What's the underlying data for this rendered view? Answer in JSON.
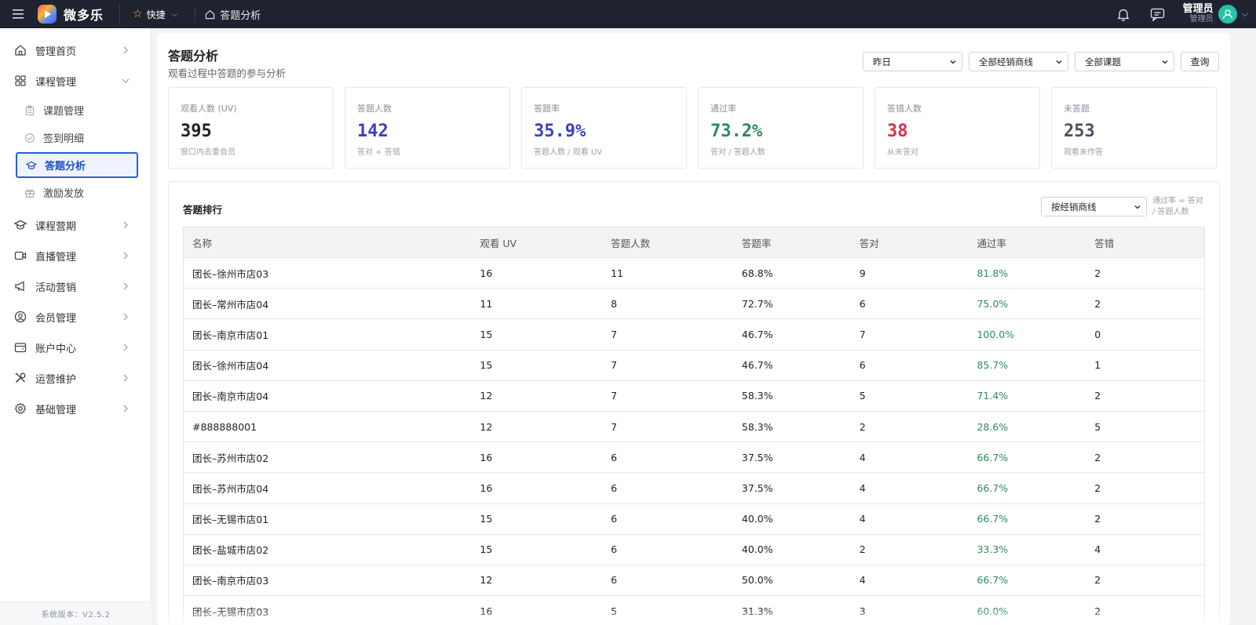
{
  "topbar": {
    "brand": "微多乐",
    "quick_label": "快捷",
    "breadcrumb": "答题分析"
  },
  "user": {
    "name": "管理员",
    "role": "管理员"
  },
  "sidebar": {
    "items": [
      {
        "label": "管理首页",
        "icon": "home-icon"
      },
      {
        "label": "课程管理",
        "icon": "grid-icon",
        "expanded": true
      },
      {
        "label": "课程营期",
        "icon": "graduation-icon"
      },
      {
        "label": "直播管理",
        "icon": "video-icon"
      },
      {
        "label": "活动营销",
        "icon": "megaphone-icon"
      },
      {
        "label": "会员管理",
        "icon": "user-circle-icon"
      },
      {
        "label": "账户中心",
        "icon": "wallet-icon"
      },
      {
        "label": "运营维护",
        "icon": "tools-icon"
      },
      {
        "label": "基础管理",
        "icon": "gear-icon"
      }
    ],
    "sub_items": [
      {
        "label": "课题管理",
        "icon": "clipboard-icon"
      },
      {
        "label": "签到明细",
        "icon": "check-circle-icon"
      },
      {
        "label": "答题分析",
        "icon": "graduation-icon",
        "active": true
      },
      {
        "label": "激励发放",
        "icon": "gift-icon"
      }
    ],
    "version": "系统版本：V2.5.2"
  },
  "page": {
    "title": "答题分析",
    "subtitle": "观看过程中答题的参与分析"
  },
  "filters": {
    "date": "昨日",
    "dealer": "全部经销商线",
    "topic": "全部课题",
    "query_label": "查询"
  },
  "stats": [
    {
      "label": "观看人数 (UV)",
      "value": "395",
      "hint": "窗口内去重会员",
      "color": "#222222"
    },
    {
      "label": "答题人数",
      "value": "142",
      "hint": "答对 + 答错",
      "color": "#3b3fbf"
    },
    {
      "label": "答题率",
      "value": "35.9%",
      "hint": "答题人数 / 观看 UV",
      "color": "#3b3fbf"
    },
    {
      "label": "通过率",
      "value": "73.2%",
      "hint": "答对 / 答题人数",
      "color": "#2e8b57"
    },
    {
      "label": "答错人数",
      "value": "38",
      "hint": "从未答对",
      "color": "#d6334a"
    },
    {
      "label": "未答题",
      "value": "253",
      "hint": "观看未作答",
      "color": "#4a5363"
    }
  ],
  "ranking": {
    "title": "答题排行",
    "group_by": "按经销商线",
    "note": "通过率 = 答对 / 答题人数",
    "columns": [
      "名称",
      "观看 UV",
      "答题人数",
      "答题率",
      "答对",
      "通过率",
      "答错"
    ],
    "rows": [
      [
        "团长–徐州市店03",
        "16",
        "11",
        "68.8%",
        "9",
        "81.8%",
        "2"
      ],
      [
        "团长–常州市店04",
        "11",
        "8",
        "72.7%",
        "6",
        "75.0%",
        "2"
      ],
      [
        "团长–南京市店01",
        "15",
        "7",
        "46.7%",
        "7",
        "100.0%",
        "0"
      ],
      [
        "团长–徐州市店04",
        "15",
        "7",
        "46.7%",
        "6",
        "85.7%",
        "1"
      ],
      [
        "团长–南京市店04",
        "12",
        "7",
        "58.3%",
        "5",
        "71.4%",
        "2"
      ],
      [
        "#888888001",
        "12",
        "7",
        "58.3%",
        "2",
        "28.6%",
        "5"
      ],
      [
        "团长–苏州市店02",
        "16",
        "6",
        "37.5%",
        "4",
        "66.7%",
        "2"
      ],
      [
        "团长–苏州市店04",
        "16",
        "6",
        "37.5%",
        "4",
        "66.7%",
        "2"
      ],
      [
        "团长–无锡市店01",
        "15",
        "6",
        "40.0%",
        "4",
        "66.7%",
        "2"
      ],
      [
        "团长–盐城市店02",
        "15",
        "6",
        "40.0%",
        "2",
        "33.3%",
        "4"
      ],
      [
        "团长–南京市店03",
        "12",
        "6",
        "50.0%",
        "4",
        "66.7%",
        "2"
      ],
      [
        "团长–无锡市店03",
        "16",
        "5",
        "31.3%",
        "3",
        "60.0%",
        "2"
      ]
    ]
  }
}
